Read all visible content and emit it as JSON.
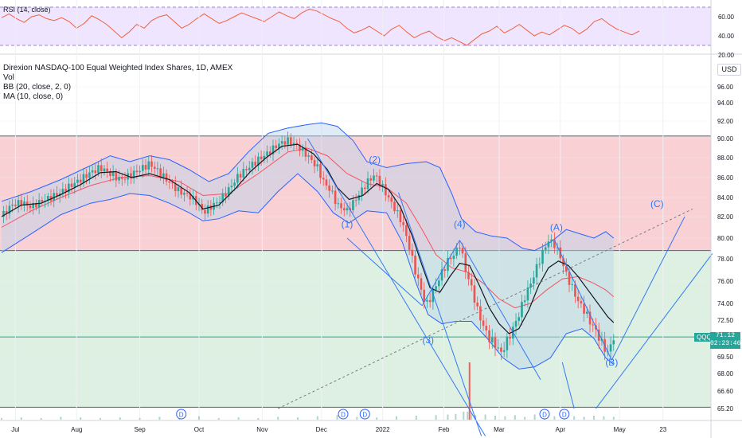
{
  "chart_data": {
    "type": "candlestick",
    "title": "Direxion NASDAQ-100 Equal Weighted Index Shares, 1D, AMEX",
    "indicators": [
      "Vol",
      "BB (20, close, 2, 0)",
      "MA (10, close, 0)"
    ],
    "rsi": {
      "label": "RSI (14, close)",
      "ticks": [
        "60.00",
        "40.00",
        "20.00"
      ],
      "points": [
        [
          0,
          59
        ],
        [
          4,
          63
        ],
        [
          8,
          58
        ],
        [
          12,
          54
        ],
        [
          16,
          60
        ],
        [
          20,
          62
        ],
        [
          24,
          58
        ],
        [
          28,
          56
        ],
        [
          32,
          59
        ],
        [
          36,
          55
        ],
        [
          40,
          48
        ],
        [
          44,
          53
        ],
        [
          48,
          61
        ],
        [
          52,
          57
        ],
        [
          56,
          52
        ],
        [
          60,
          45
        ],
        [
          64,
          38
        ],
        [
          68,
          44
        ],
        [
          72,
          52
        ],
        [
          76,
          48
        ],
        [
          80,
          56
        ],
        [
          84,
          60
        ],
        [
          88,
          62
        ],
        [
          92,
          55
        ],
        [
          96,
          48
        ],
        [
          100,
          52
        ],
        [
          104,
          58
        ],
        [
          108,
          63
        ],
        [
          112,
          58
        ],
        [
          116,
          53
        ],
        [
          120,
          56
        ],
        [
          124,
          60
        ],
        [
          128,
          64
        ],
        [
          132,
          61
        ],
        [
          136,
          58
        ],
        [
          140,
          55
        ],
        [
          144,
          60
        ],
        [
          148,
          65
        ],
        [
          152,
          61
        ],
        [
          156,
          58
        ],
        [
          160,
          64
        ],
        [
          164,
          68
        ],
        [
          168,
          66
        ],
        [
          172,
          62
        ],
        [
          176,
          58
        ],
        [
          180,
          55
        ],
        [
          184,
          48
        ],
        [
          188,
          43
        ],
        [
          192,
          46
        ],
        [
          196,
          50
        ],
        [
          200,
          45
        ],
        [
          204,
          40
        ],
        [
          208,
          47
        ],
        [
          212,
          51
        ],
        [
          216,
          44
        ],
        [
          220,
          38
        ],
        [
          224,
          42
        ],
        [
          228,
          45
        ],
        [
          232,
          39
        ],
        [
          236,
          35
        ],
        [
          240,
          38
        ],
        [
          244,
          34
        ],
        [
          248,
          30
        ],
        [
          252,
          36
        ],
        [
          256,
          42
        ],
        [
          260,
          45
        ],
        [
          264,
          50
        ],
        [
          268,
          43
        ],
        [
          272,
          47
        ],
        [
          276,
          52
        ],
        [
          280,
          46
        ],
        [
          284,
          40
        ],
        [
          288,
          44
        ],
        [
          292,
          41
        ],
        [
          296,
          46
        ],
        [
          300,
          51
        ],
        [
          304,
          48
        ],
        [
          308,
          42
        ],
        [
          312,
          47
        ],
        [
          316,
          55
        ],
        [
          320,
          58
        ],
        [
          324,
          52
        ],
        [
          328,
          47
        ],
        [
          332,
          44
        ],
        [
          336,
          41
        ],
        [
          340,
          45
        ]
      ]
    },
    "price_ticks": [
      "96.00",
      "94.00",
      "92.00",
      "90.00",
      "88.00",
      "86.00",
      "84.00",
      "82.00",
      "80.00",
      "78.00",
      "76.00",
      "74.00",
      "72.50",
      "69.50",
      "68.00",
      "66.60",
      "65.20"
    ],
    "price_axis_top_partial": "9",
    "usd_label": "USD",
    "current_price": {
      "value": "71.12",
      "countdown": "02:23:46",
      "ticker": "QQQE"
    },
    "x_labels": [
      {
        "label": "Jul",
        "t": 7
      },
      {
        "label": "Aug",
        "t": 38
      },
      {
        "label": "Sep",
        "t": 70
      },
      {
        "label": "Oct",
        "t": 100
      },
      {
        "label": "Nov",
        "t": 132
      },
      {
        "label": "Dec",
        "t": 162
      },
      {
        "label": "2022",
        "t": 193
      },
      {
        "label": "Feb",
        "t": 224
      },
      {
        "label": "Mar",
        "t": 252
      },
      {
        "label": "Apr",
        "t": 283
      },
      {
        "label": "May",
        "t": 313
      },
      {
        "label": "23",
        "t": 335
      }
    ],
    "dividend_markers": [
      {
        "label": "D",
        "t": 91
      },
      {
        "label": "D",
        "t": 173
      },
      {
        "label": "D",
        "t": 184
      },
      {
        "label": "D",
        "t": 275
      },
      {
        "label": "D",
        "t": 285
      }
    ],
    "wave_labels": [
      {
        "label": "(1)",
        "t": 175,
        "price": 81.0
      },
      {
        "label": "(2)",
        "t": 189,
        "price": 87.5
      },
      {
        "label": "(3)",
        "t": 216,
        "price": 70.6
      },
      {
        "label": "(4)",
        "t": 232,
        "price": 81.0
      },
      {
        "label": "(A)",
        "t": 281,
        "price": 80.7
      },
      {
        "label": "(B)",
        "t": 309,
        "price": 68.7
      },
      {
        "label": "(C)",
        "t": 332,
        "price": 83.0
      }
    ],
    "zones": {
      "red": {
        "from": 78.8,
        "to": 90.3
      },
      "green": {
        "from": 65.3,
        "to": 78.8
      },
      "current_line": 71.12
    },
    "close": [
      [
        0,
        82.0
      ],
      [
        5,
        83.2
      ],
      [
        10,
        83.5
      ],
      [
        15,
        83.0
      ],
      [
        20,
        83.6
      ],
      [
        25,
        84.0
      ],
      [
        30,
        84.5
      ],
      [
        35,
        85.2
      ],
      [
        40,
        85.8
      ],
      [
        45,
        86.5
      ],
      [
        50,
        87.0
      ],
      [
        55,
        86.4
      ],
      [
        60,
        85.8
      ],
      [
        65,
        86.2
      ],
      [
        70,
        86.8
      ],
      [
        75,
        87.4
      ],
      [
        80,
        86.5
      ],
      [
        85,
        85.5
      ],
      [
        90,
        84.6
      ],
      [
        95,
        84.2
      ],
      [
        100,
        83.2
      ],
      [
        102,
        82.4
      ],
      [
        105,
        82.9
      ],
      [
        110,
        83.6
      ],
      [
        115,
        84.8
      ],
      [
        120,
        86.2
      ],
      [
        125,
        87.0
      ],
      [
        130,
        87.8
      ],
      [
        135,
        88.5
      ],
      [
        140,
        89.4
      ],
      [
        145,
        89.8
      ],
      [
        150,
        89.2
      ],
      [
        155,
        88.2
      ],
      [
        160,
        87.0
      ],
      [
        163,
        85.6
      ],
      [
        167,
        84.6
      ],
      [
        170,
        83.2
      ],
      [
        175,
        82.6
      ],
      [
        180,
        84.0
      ],
      [
        185,
        85.5
      ],
      [
        189,
        86.3
      ],
      [
        193,
        85.0
      ],
      [
        197,
        83.6
      ],
      [
        200,
        82.5
      ],
      [
        203,
        81.4
      ],
      [
        206,
        79.5
      ],
      [
        209,
        77.2
      ],
      [
        212,
        75.5
      ],
      [
        215,
        73.8
      ],
      [
        218,
        74.8
      ],
      [
        222,
        76.4
      ],
      [
        226,
        77.8
      ],
      [
        230,
        78.6
      ],
      [
        232,
        79.4
      ],
      [
        235,
        77.0
      ],
      [
        238,
        75.4
      ],
      [
        241,
        73.4
      ],
      [
        244,
        72.0
      ],
      [
        247,
        71.0
      ],
      [
        250,
        70.5
      ],
      [
        253,
        69.8
      ],
      [
        256,
        70.8
      ],
      [
        259,
        71.8
      ],
      [
        262,
        73.0
      ],
      [
        265,
        74.6
      ],
      [
        268,
        75.8
      ],
      [
        271,
        77.2
      ],
      [
        274,
        78.6
      ],
      [
        277,
        79.8
      ],
      [
        280,
        79.4
      ],
      [
        283,
        78.2
      ],
      [
        286,
        76.6
      ],
      [
        289,
        75.4
      ],
      [
        292,
        74.2
      ],
      [
        295,
        73.4
      ],
      [
        298,
        72.4
      ],
      [
        301,
        71.6
      ],
      [
        304,
        70.6
      ],
      [
        307,
        69.8
      ],
      [
        310,
        71.1
      ]
    ],
    "ma10": [
      [
        0,
        82.0
      ],
      [
        10,
        83.2
      ],
      [
        20,
        83.4
      ],
      [
        30,
        84.3
      ],
      [
        40,
        85.3
      ],
      [
        50,
        86.5
      ],
      [
        58,
        86.6
      ],
      [
        66,
        86.0
      ],
      [
        75,
        86.4
      ],
      [
        85,
        85.8
      ],
      [
        95,
        84.5
      ],
      [
        102,
        82.8
      ],
      [
        110,
        83.2
      ],
      [
        118,
        84.8
      ],
      [
        126,
        86.6
      ],
      [
        134,
        88.0
      ],
      [
        142,
        89.2
      ],
      [
        150,
        89.4
      ],
      [
        158,
        88.4
      ],
      [
        165,
        86.8
      ],
      [
        170,
        85.0
      ],
      [
        176,
        83.8
      ],
      [
        183,
        84.2
      ],
      [
        190,
        85.4
      ],
      [
        196,
        84.8
      ],
      [
        202,
        83.0
      ],
      [
        208,
        80.2
      ],
      [
        213,
        77.4
      ],
      [
        217,
        75.4
      ],
      [
        222,
        75.0
      ],
      [
        227,
        76.4
      ],
      [
        232,
        77.6
      ],
      [
        237,
        77.4
      ],
      [
        242,
        75.6
      ],
      [
        247,
        73.6
      ],
      [
        252,
        72.2
      ],
      [
        257,
        71.4
      ],
      [
        262,
        71.8
      ],
      [
        267,
        73.4
      ],
      [
        272,
        75.6
      ],
      [
        277,
        77.2
      ],
      [
        282,
        77.8
      ],
      [
        287,
        77.4
      ],
      [
        292,
        76.4
      ],
      [
        297,
        75.2
      ],
      [
        302,
        74.0
      ],
      [
        307,
        72.8
      ],
      [
        310,
        72.3
      ]
    ],
    "bb_mid": [
      [
        0,
        81.0
      ],
      [
        15,
        82.6
      ],
      [
        30,
        84.0
      ],
      [
        45,
        85.2
      ],
      [
        60,
        86.0
      ],
      [
        75,
        86.2
      ],
      [
        90,
        85.6
      ],
      [
        102,
        84.2
      ],
      [
        115,
        84.4
      ],
      [
        130,
        86.4
      ],
      [
        145,
        88.6
      ],
      [
        155,
        89.0
      ],
      [
        165,
        88.2
      ],
      [
        175,
        86.4
      ],
      [
        185,
        85.4
      ],
      [
        195,
        85.0
      ],
      [
        205,
        83.4
      ],
      [
        213,
        80.8
      ],
      [
        220,
        78.4
      ],
      [
        228,
        77.2
      ],
      [
        236,
        76.8
      ],
      [
        244,
        75.8
      ],
      [
        252,
        74.4
      ],
      [
        260,
        73.6
      ],
      [
        268,
        74.0
      ],
      [
        276,
        75.2
      ],
      [
        284,
        76.2
      ],
      [
        292,
        76.4
      ],
      [
        300,
        75.8
      ],
      [
        306,
        75.2
      ],
      [
        310,
        74.6
      ]
    ],
    "bb_upper": [
      [
        0,
        83.6
      ],
      [
        15,
        84.6
      ],
      [
        30,
        85.8
      ],
      [
        45,
        87.2
      ],
      [
        55,
        88.2
      ],
      [
        65,
        87.6
      ],
      [
        75,
        88.2
      ],
      [
        85,
        87.8
      ],
      [
        95,
        86.8
      ],
      [
        105,
        85.6
      ],
      [
        115,
        86.4
      ],
      [
        125,
        88.6
      ],
      [
        135,
        90.6
      ],
      [
        145,
        91.2
      ],
      [
        155,
        91.6
      ],
      [
        162,
        91.8
      ],
      [
        170,
        91.4
      ],
      [
        178,
        89.8
      ],
      [
        185,
        87.6
      ],
      [
        195,
        87.0
      ],
      [
        205,
        87.4
      ],
      [
        215,
        87.6
      ],
      [
        222,
        87.0
      ],
      [
        228,
        84.4
      ],
      [
        233,
        81.8
      ],
      [
        240,
        80.6
      ],
      [
        248,
        80.2
      ],
      [
        256,
        80.0
      ],
      [
        264,
        79.0
      ],
      [
        270,
        78.8
      ],
      [
        278,
        79.6
      ],
      [
        286,
        80.8
      ],
      [
        293,
        80.4
      ],
      [
        300,
        80.0
      ],
      [
        306,
        80.6
      ],
      [
        310,
        80.0
      ]
    ],
    "bb_lower": [
      [
        0,
        78.6
      ],
      [
        15,
        80.4
      ],
      [
        30,
        82.2
      ],
      [
        45,
        83.4
      ],
      [
        55,
        83.8
      ],
      [
        65,
        84.4
      ],
      [
        75,
        84.2
      ],
      [
        85,
        83.4
      ],
      [
        95,
        82.4
      ],
      [
        102,
        81.6
      ],
      [
        110,
        81.8
      ],
      [
        120,
        82.6
      ],
      [
        130,
        82.4
      ],
      [
        140,
        84.6
      ],
      [
        150,
        86.4
      ],
      [
        160,
        84.6
      ],
      [
        168,
        82.4
      ],
      [
        176,
        81.4
      ],
      [
        185,
        82.6
      ],
      [
        195,
        82.4
      ],
      [
        203,
        79.6
      ],
      [
        210,
        75.8
      ],
      [
        216,
        73.0
      ],
      [
        223,
        72.2
      ],
      [
        230,
        72.4
      ],
      [
        238,
        72.4
      ],
      [
        246,
        71.0
      ],
      [
        254,
        69.4
      ],
      [
        262,
        68.4
      ],
      [
        270,
        68.6
      ],
      [
        278,
        69.4
      ],
      [
        286,
        71.4
      ],
      [
        294,
        71.8
      ],
      [
        300,
        71.0
      ],
      [
        306,
        69.4
      ],
      [
        310,
        68.8
      ]
    ],
    "volume": [
      [
        0,
        3
      ],
      [
        10,
        4
      ],
      [
        20,
        3
      ],
      [
        30,
        5
      ],
      [
        40,
        4
      ],
      [
        50,
        3
      ],
      [
        60,
        4
      ],
      [
        70,
        3
      ],
      [
        80,
        5
      ],
      [
        90,
        4
      ],
      [
        100,
        6
      ],
      [
        110,
        3
      ],
      [
        120,
        4
      ],
      [
        130,
        3
      ],
      [
        140,
        5
      ],
      [
        150,
        4
      ],
      [
        160,
        6
      ],
      [
        170,
        8
      ],
      [
        180,
        5
      ],
      [
        190,
        4
      ],
      [
        200,
        6
      ],
      [
        210,
        7
      ],
      [
        220,
        8
      ],
      [
        226,
        9
      ],
      [
        230,
        10
      ],
      [
        234,
        14
      ],
      [
        236,
        14
      ],
      [
        237,
        100
      ],
      [
        238,
        12
      ],
      [
        240,
        8
      ],
      [
        245,
        9
      ],
      [
        250,
        7
      ],
      [
        255,
        6
      ],
      [
        260,
        8
      ],
      [
        265,
        5
      ],
      [
        270,
        9
      ],
      [
        275,
        7
      ],
      [
        280,
        6
      ],
      [
        285,
        5
      ],
      [
        290,
        6
      ],
      [
        295,
        5
      ],
      [
        300,
        7
      ],
      [
        305,
        6
      ],
      [
        310,
        5
      ]
    ]
  }
}
